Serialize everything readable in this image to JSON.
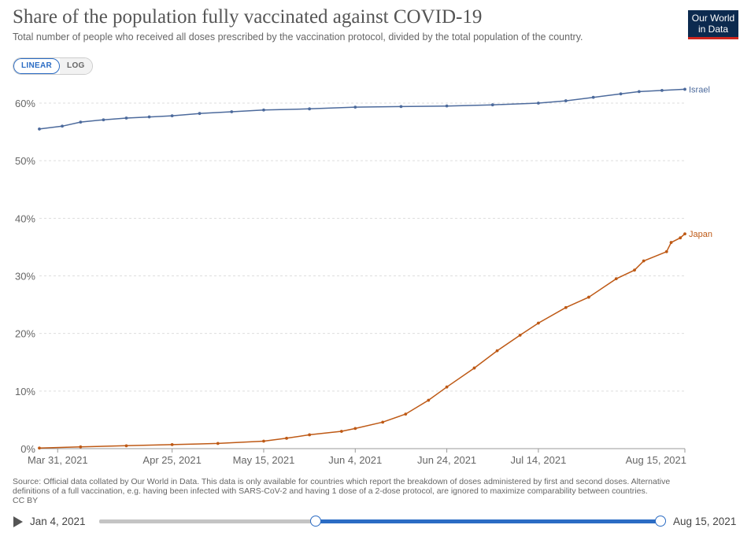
{
  "header": {
    "title": "Share of the population fully vaccinated against COVID-19",
    "subtitle": "Total number of people who received all doses prescribed by the vaccination protocol, divided by the total population of the country.",
    "logo_line1": "Our World",
    "logo_line2": "in Data"
  },
  "controls": {
    "linear_label": "LINEAR",
    "log_label": "LOG",
    "active": "linear"
  },
  "chart_data": {
    "type": "line",
    "title": "Share of the population fully vaccinated against COVID-19",
    "xlabel": "",
    "ylabel": "",
    "ylim": [
      0,
      60
    ],
    "y_ticks": [
      0,
      10,
      20,
      30,
      40,
      50,
      60
    ],
    "y_tick_labels": [
      "0%",
      "10%",
      "20%",
      "30%",
      "40%",
      "50%",
      "60%"
    ],
    "x_ticks": [
      "2021-03-31",
      "2021-04-25",
      "2021-05-15",
      "2021-06-04",
      "2021-06-24",
      "2021-07-14",
      "2021-08-15"
    ],
    "x_tick_labels": [
      "Mar 31, 2021",
      "Apr 25, 2021",
      "May 15, 2021",
      "Jun 4, 2021",
      "Jun 24, 2021",
      "Jul 14, 2021",
      "Aug 15, 2021"
    ],
    "x_range": [
      "2021-03-27",
      "2021-08-15"
    ],
    "grid": "horizontal dashed",
    "legend": "inline labels at line ends",
    "series": [
      {
        "name": "Israel",
        "color": "#4c6a9c",
        "points": [
          [
            "2021-03-27",
            55.5
          ],
          [
            "2021-04-01",
            56.0
          ],
          [
            "2021-04-05",
            56.7
          ],
          [
            "2021-04-10",
            57.1
          ],
          [
            "2021-04-15",
            57.4
          ],
          [
            "2021-04-20",
            57.6
          ],
          [
            "2021-04-25",
            57.8
          ],
          [
            "2021-05-01",
            58.2
          ],
          [
            "2021-05-08",
            58.5
          ],
          [
            "2021-05-15",
            58.8
          ],
          [
            "2021-05-25",
            59.0
          ],
          [
            "2021-06-04",
            59.3
          ],
          [
            "2021-06-14",
            59.4
          ],
          [
            "2021-06-24",
            59.5
          ],
          [
            "2021-07-04",
            59.7
          ],
          [
            "2021-07-14",
            60.0
          ],
          [
            "2021-07-20",
            60.4
          ],
          [
            "2021-07-26",
            61.0
          ],
          [
            "2021-08-01",
            61.6
          ],
          [
            "2021-08-05",
            62.0
          ],
          [
            "2021-08-10",
            62.2
          ],
          [
            "2021-08-15",
            62.4
          ]
        ]
      },
      {
        "name": "Japan",
        "color": "#be5915",
        "points": [
          [
            "2021-03-27",
            0.1
          ],
          [
            "2021-04-05",
            0.3
          ],
          [
            "2021-04-15",
            0.5
          ],
          [
            "2021-04-25",
            0.7
          ],
          [
            "2021-05-05",
            0.9
          ],
          [
            "2021-05-15",
            1.3
          ],
          [
            "2021-05-20",
            1.8
          ],
          [
            "2021-05-25",
            2.4
          ],
          [
            "2021-06-01",
            3.0
          ],
          [
            "2021-06-04",
            3.5
          ],
          [
            "2021-06-10",
            4.6
          ],
          [
            "2021-06-15",
            6.0
          ],
          [
            "2021-06-20",
            8.4
          ],
          [
            "2021-06-24",
            10.7
          ],
          [
            "2021-06-30",
            14.0
          ],
          [
            "2021-07-05",
            17.0
          ],
          [
            "2021-07-10",
            19.7
          ],
          [
            "2021-07-14",
            21.8
          ],
          [
            "2021-07-20",
            24.5
          ],
          [
            "2021-07-25",
            26.3
          ],
          [
            "2021-07-31",
            29.5
          ],
          [
            "2021-08-04",
            31.0
          ],
          [
            "2021-08-06",
            32.6
          ],
          [
            "2021-08-11",
            34.2
          ],
          [
            "2021-08-12",
            35.8
          ],
          [
            "2021-08-14",
            36.6
          ],
          [
            "2021-08-15",
            37.3
          ]
        ]
      }
    ]
  },
  "footer": {
    "source": "Source: Official data collated by Our World in Data. This data is only available for countries which report the breakdown of doses administered by first and second doses. Alternative definitions of a full vaccination, e.g. having been infected with SARS-CoV-2 and having 1 dose of a 2-dose protocol, are ignored to maximize comparability between countries.",
    "license": "CC BY"
  },
  "timeline": {
    "start_label": "Jan 4, 2021",
    "end_label": "Aug 15, 2021"
  }
}
